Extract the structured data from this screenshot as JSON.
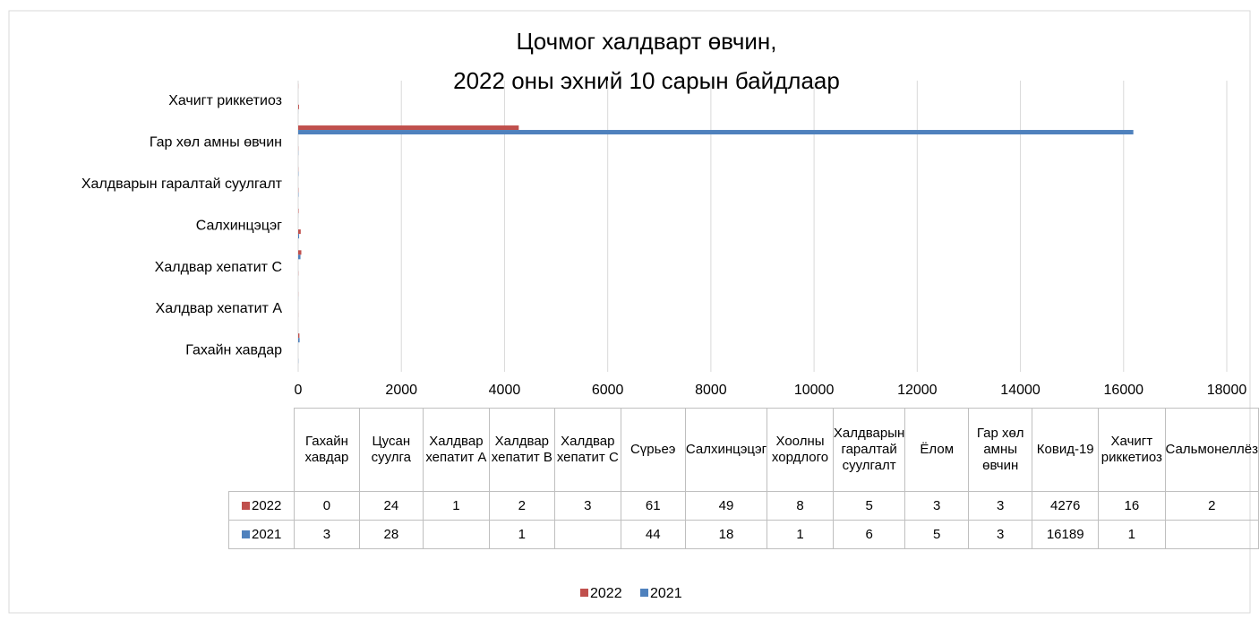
{
  "chart_data": {
    "type": "bar",
    "orientation": "horizontal",
    "title_lines": [
      "Цочмог халдварт өвчин,",
      "2022 оны эхний 10 сарын байдлаар"
    ],
    "categories": [
      "Гахайн хавдар",
      "Цусан суулга",
      "Халдвар хепатит А",
      "Халдвар хепатит В",
      "Халдвар хепатит С",
      "Сүрьеэ",
      "Салхинцэцэг",
      "Хоолны хордлого",
      "Халдварын гаралтай суулгалт",
      "Ёлом",
      "Гар хөл амны өвчин",
      "Ковид-19",
      "Хачигт риккетиоз",
      "Сальмонеллёз"
    ],
    "series": [
      {
        "name": "2022",
        "color": "#c0504d",
        "values": [
          0,
          24,
          1,
          2,
          3,
          61,
          49,
          8,
          5,
          3,
          3,
          4276,
          16,
          2
        ]
      },
      {
        "name": "2021",
        "color": "#4f81bd",
        "values": [
          3,
          28,
          null,
          1,
          null,
          44,
          18,
          1,
          6,
          5,
          3,
          16189,
          1,
          null
        ]
      }
    ],
    "xlim": [
      0,
      18000
    ],
    "xticks": [
      0,
      2000,
      4000,
      6000,
      8000,
      10000,
      12000,
      14000,
      16000,
      18000
    ],
    "grid": true,
    "category_label_interval": 2,
    "data_table": true,
    "legend": "bottom"
  }
}
